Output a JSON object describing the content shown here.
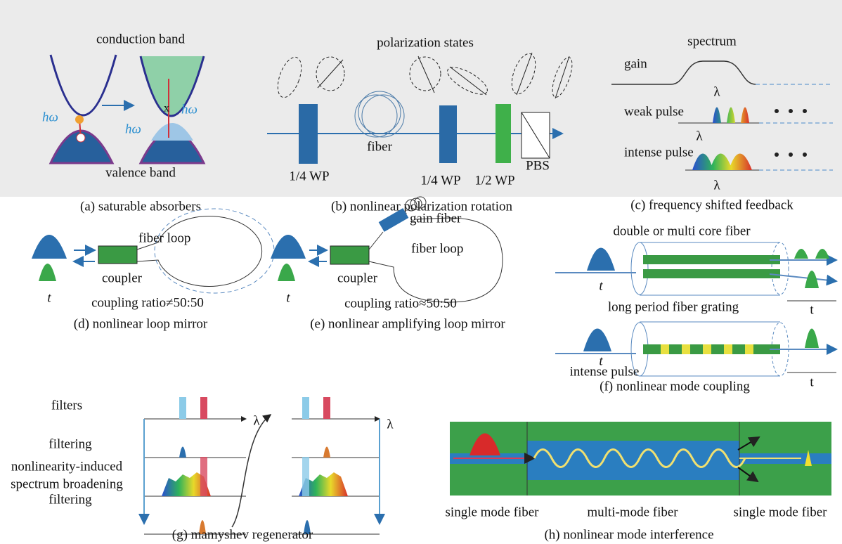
{
  "panels": {
    "a": {
      "caption": "(a) saturable absorbers",
      "labels": [
        "conduction band",
        "valence band",
        "hω",
        "hω",
        "hω"
      ]
    },
    "b": {
      "caption": "(b) nonlinear polarization rotation",
      "labels": [
        "polarization states",
        "fiber",
        "1/4 WP",
        "1/4 WP",
        "1/2 WP",
        "PBS"
      ]
    },
    "c": {
      "caption": "(c) frequency shifted feedback",
      "labels": [
        "spectrum",
        "gain",
        "weak pulse",
        "intense pulse",
        "λ",
        "λ",
        "λ"
      ]
    },
    "d": {
      "caption": "(d) nonlinear loop mirror",
      "labels": [
        "fiber loop",
        "coupler",
        "t",
        "coupling ratio≠50:50"
      ]
    },
    "e": {
      "caption": "(e) nonlinear amplifying loop mirror",
      "labels": [
        "gain fiber",
        "fiber loop",
        "coupler",
        "t",
        "coupling ratio≈50:50"
      ]
    },
    "f": {
      "caption": "(f) nonlinear mode coupling",
      "labels": [
        "double or multi core fiber",
        "t",
        "long period fiber grating",
        "t",
        "t",
        "t",
        "intense pulse"
      ]
    },
    "g": {
      "caption": "(g) mamyshev regenerator",
      "labels": [
        "filters",
        "filtering",
        "nonlinearity-induced",
        "spectrum broadening",
        "filtering",
        "λ",
        "λ"
      ]
    },
    "h": {
      "caption": "(h) nonlinear mode interference",
      "labels": [
        "single mode fiber",
        "multi-mode fiber",
        "single mode fiber"
      ]
    }
  }
}
